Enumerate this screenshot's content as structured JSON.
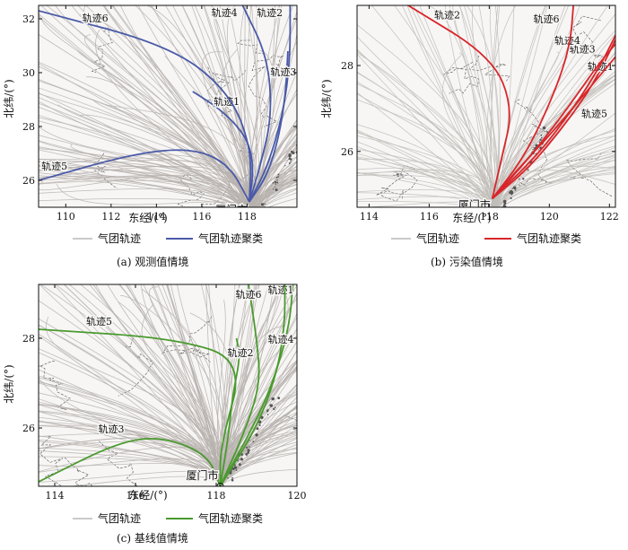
{
  "chart_data": [
    {
      "type": "line",
      "caption": "(a)  观测值情境",
      "xlabel": "东经/(°)",
      "ylabel": "北纬/(°)",
      "xlim": [
        108.8,
        120.2
      ],
      "ylim": [
        25.0,
        32.5
      ],
      "xticks": [
        110,
        112,
        114,
        116,
        118
      ],
      "yticks": [
        26,
        28,
        30,
        32
      ],
      "city": {
        "name": "厦门市",
        "x": 118.1,
        "y": 24.5
      },
      "legend": {
        "background": "气团轨迹",
        "cluster": "气团轨迹聚类"
      },
      "cluster_color": "#4a5aa8",
      "clusters": [
        {
          "name": "轨迹1",
          "points": [
            [
              118.1,
              25.2
            ],
            [
              118.3,
              26.5
            ],
            [
              118.0,
              27.6
            ],
            [
              116.9,
              28.6
            ],
            [
              115.6,
              29.3
            ]
          ],
          "label": [
            117.1,
            28.8
          ]
        },
        {
          "name": "轨迹2",
          "points": [
            [
              118.1,
              25.2
            ],
            [
              118.9,
              26.5
            ],
            [
              119.6,
              28.5
            ],
            [
              119.9,
              30.5
            ],
            [
              119.9,
              32.5
            ]
          ],
          "label": [
            119.0,
            32.1
          ]
        },
        {
          "name": "轨迹3",
          "points": [
            [
              118.1,
              25.2
            ],
            [
              118.9,
              26.2
            ],
            [
              119.4,
              27.6
            ],
            [
              119.7,
              29.2
            ],
            [
              119.8,
              30.8
            ]
          ],
          "label": [
            119.6,
            29.9
          ]
        },
        {
          "name": "轨迹4",
          "points": [
            [
              118.1,
              25.2
            ],
            [
              118.6,
              26.6
            ],
            [
              119.1,
              28.4
            ],
            [
              118.9,
              30.6
            ],
            [
              117.8,
              32.5
            ]
          ],
          "label": [
            117.0,
            32.1
          ]
        },
        {
          "name": "轨迹5",
          "points": [
            [
              118.1,
              25.2
            ],
            [
              117.2,
              26.6
            ],
            [
              115.6,
              27.2
            ],
            [
              113.0,
              27.0
            ],
            [
              108.8,
              26.0
            ]
          ],
          "label": [
            109.5,
            26.4
          ]
        },
        {
          "name": "轨迹6",
          "points": [
            [
              118.1,
              25.2
            ],
            [
              118.2,
              27.2
            ],
            [
              117.2,
              29.3
            ],
            [
              114.6,
              31.0
            ],
            [
              108.8,
              32.3
            ]
          ],
          "label": [
            111.3,
            31.9
          ]
        }
      ]
    },
    {
      "type": "line",
      "caption": "(b)  污染值情境",
      "xlabel": "东经/(°)",
      "ylabel": "北纬/(°)",
      "xlim": [
        113.6,
        122.2
      ],
      "ylim": [
        24.7,
        29.4
      ],
      "xticks": [
        114,
        116,
        118,
        120,
        122
      ],
      "yticks": [
        26,
        28
      ],
      "city": {
        "name": "厦门市",
        "x": 118.1,
        "y": 24.5
      },
      "legend": {
        "background": "气团轨迹",
        "cluster": "气团轨迹聚类"
      },
      "cluster_color": "#d8262a",
      "clusters": [
        {
          "name": "轨迹1",
          "points": [
            [
              118.1,
              24.9
            ],
            [
              119.3,
              25.6
            ],
            [
              120.5,
              26.6
            ],
            [
              121.5,
              27.6
            ],
            [
              122.2,
              28.6
            ]
          ],
          "label": [
            121.7,
            27.9
          ]
        },
        {
          "name": "轨迹2",
          "points": [
            [
              118.1,
              24.9
            ],
            [
              118.4,
              25.8
            ],
            [
              118.8,
              27.0
            ],
            [
              118.1,
              28.2
            ],
            [
              115.3,
              29.4
            ]
          ],
          "label": [
            116.6,
            29.1
          ]
        },
        {
          "name": "轨迹3",
          "points": [
            [
              118.1,
              24.9
            ],
            [
              119.6,
              25.9
            ],
            [
              120.8,
              27.0
            ],
            [
              121.7,
              28.0
            ],
            [
              122.2,
              28.7
            ]
          ],
          "label": [
            121.1,
            28.3
          ]
        },
        {
          "name": "轨迹4",
          "points": [
            [
              118.1,
              24.9
            ],
            [
              119.4,
              25.9
            ],
            [
              120.6,
              27.0
            ],
            [
              121.6,
              28.0
            ],
            [
              122.2,
              28.5
            ]
          ],
          "label": [
            120.6,
            28.5
          ]
        },
        {
          "name": "轨迹5",
          "points": [
            [
              118.1,
              24.9
            ],
            [
              119.1,
              25.7
            ],
            [
              120.3,
              26.6
            ],
            [
              121.6,
              27.7
            ],
            [
              122.2,
              28.2
            ]
          ],
          "label": [
            121.5,
            26.8
          ]
        },
        {
          "name": "轨迹6",
          "points": [
            [
              118.1,
              24.9
            ],
            [
              119.2,
              25.9
            ],
            [
              120.2,
              27.4
            ],
            [
              120.7,
              28.5
            ],
            [
              120.8,
              29.4
            ]
          ],
          "label": [
            119.9,
            29.0
          ]
        }
      ]
    },
    {
      "type": "line",
      "caption": "(c)  基线值情境",
      "xlabel": "东经/(°)",
      "ylabel": "北纬/(°)",
      "xlim": [
        113.6,
        120.0
      ],
      "ylim": [
        24.7,
        29.2
      ],
      "xticks": [
        114,
        116,
        118,
        120
      ],
      "yticks": [
        26,
        28
      ],
      "city": {
        "name": "厦门市",
        "x": 118.1,
        "y": 24.7
      },
      "legend": {
        "background": "气团轨迹",
        "cluster": "气团轨迹聚类"
      },
      "cluster_color": "#4a9a2e",
      "clusters": [
        {
          "name": "轨迹1",
          "points": [
            [
              118.1,
              24.7
            ],
            [
              118.9,
              26.0
            ],
            [
              119.4,
              27.0
            ],
            [
              119.8,
              28.2
            ],
            [
              119.9,
              29.2
            ]
          ],
          "label": [
            119.6,
            29.0
          ]
        },
        {
          "name": "轨迹2",
          "points": [
            [
              118.1,
              24.7
            ],
            [
              118.3,
              25.8
            ],
            [
              118.4,
              26.7
            ],
            [
              118.6,
              27.6
            ],
            [
              118.5,
              28.0
            ]
          ],
          "label": [
            118.6,
            27.6
          ]
        },
        {
          "name": "轨迹3",
          "points": [
            [
              118.1,
              24.7
            ],
            [
              117.8,
              25.4
            ],
            [
              116.7,
              25.8
            ],
            [
              115.6,
              25.7
            ],
            [
              113.6,
              24.8
            ]
          ],
          "label": [
            115.4,
            25.9
          ]
        },
        {
          "name": "轨迹4",
          "points": [
            [
              118.1,
              24.7
            ],
            [
              119.0,
              26.0
            ],
            [
              119.5,
              27.2
            ],
            [
              119.7,
              28.3
            ],
            [
              119.7,
              29.2
            ]
          ],
          "label": [
            119.6,
            27.9
          ]
        },
        {
          "name": "轨迹5",
          "points": [
            [
              118.1,
              24.7
            ],
            [
              118.1,
              25.6
            ],
            [
              118.7,
              27.5
            ],
            [
              117.0,
              28.0
            ],
            [
              113.6,
              28.2
            ]
          ],
          "label": [
            115.1,
            28.3
          ]
        },
        {
          "name": "轨迹6",
          "points": [
            [
              118.1,
              24.7
            ],
            [
              118.7,
              25.9
            ],
            [
              119.1,
              27.0
            ],
            [
              119.0,
              28.0
            ],
            [
              118.8,
              29.2
            ]
          ],
          "label": [
            118.8,
            28.9
          ]
        }
      ]
    }
  ]
}
